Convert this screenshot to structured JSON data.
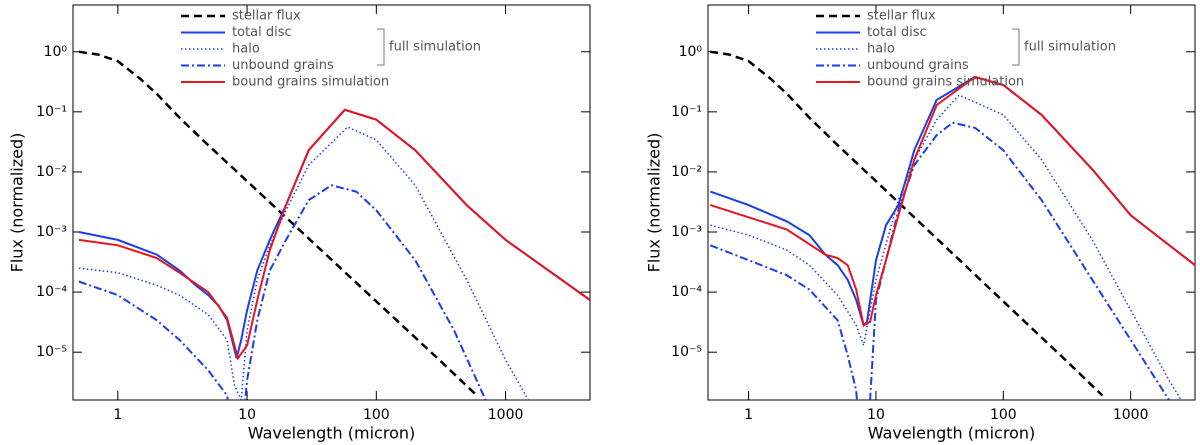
{
  "chart_data": [
    {
      "type": "line",
      "xlabel": "Wavelength (micron)",
      "ylabel": "Flux (normalized)",
      "xscale": "log",
      "yscale": "log",
      "xlim": [
        0.45,
        4500
      ],
      "ylim": [
        1.6e-06,
        6
      ],
      "xticks": [
        1,
        10,
        100,
        1000
      ],
      "yticks": [
        {
          "value": 1e-05,
          "label": "10⁻⁵"
        },
        {
          "value": 0.0001,
          "label": "10⁻⁴"
        },
        {
          "value": 0.001,
          "label": "10⁻³"
        },
        {
          "value": 0.01,
          "label": "10⁻²"
        },
        {
          "value": 0.1,
          "label": "10⁻¹"
        },
        {
          "value": 1,
          "label": "10⁰"
        }
      ],
      "annotation": "full simulation",
      "series": [
        {
          "name": "stellar flux",
          "color": "#000000",
          "style": "dashed",
          "x": [
            0.5,
            0.7,
            1,
            1.5,
            2,
            3,
            5,
            10,
            20,
            50,
            100,
            300,
            600
          ],
          "values": [
            1.0,
            0.9,
            0.7,
            0.35,
            0.2,
            0.08,
            0.028,
            0.007,
            0.00175,
            0.00028,
            7e-05,
            7.8e-06,
            1.9e-06
          ]
        },
        {
          "name": "total disc",
          "color": "#1a3ee8",
          "style": "solid",
          "x": [
            0.5,
            1,
            2,
            3,
            4,
            5,
            6,
            7,
            8.3,
            9,
            10,
            12,
            15,
            20,
            30,
            57,
            100,
            200,
            500,
            1000,
            4500
          ],
          "values": [
            0.001,
            0.00074,
            0.00042,
            0.00023,
            0.00013,
            8.9e-05,
            6e-05,
            3.4e-05,
            7.9e-06,
            1.6e-05,
            5e-05,
            0.00023,
            0.00074,
            0.0028,
            0.023,
            0.108,
            0.074,
            0.023,
            0.0028,
            0.00074,
            7.4e-05
          ]
        },
        {
          "name": "halo",
          "color": "#1a3ee8",
          "style": "dotted",
          "x": [
            0.5,
            1,
            2,
            3,
            5,
            7,
            8,
            9,
            10,
            12,
            15,
            20,
            30,
            60,
            100,
            200,
            500,
            1000,
            1500
          ],
          "values": [
            0.00025,
            0.00021,
            0.00013,
            8.9e-05,
            4.2e-05,
            1.6e-05,
            2.8e-06,
            1.6e-06,
            2.3e-05,
            0.00016,
            0.0006,
            0.0023,
            0.013,
            0.056,
            0.034,
            0.006,
            0.00016,
            7.4e-06,
            1.6e-06
          ]
        },
        {
          "name": "unbound grains",
          "color": "#1a3ee8",
          "style": "dashdot",
          "x": [
            0.5,
            1,
            2,
            3,
            5,
            7,
            8,
            9,
            10,
            12,
            15,
            20,
            30,
            45,
            70,
            100,
            200,
            400,
            700
          ],
          "values": [
            0.00015,
            8.9e-05,
            3.4e-05,
            1.6e-05,
            5e-06,
            1.9e-06,
            3.4e-07,
            3.4e-07,
            3.4e-06,
            3.4e-05,
            0.00023,
            0.00074,
            0.0034,
            0.006,
            0.0047,
            0.0023,
            0.00034,
            2.3e-05,
            1.6e-06
          ]
        },
        {
          "name": "bound grains simulation",
          "color": "#e8141e",
          "style": "solid",
          "x": [
            0.5,
            1,
            2,
            3,
            5,
            7,
            8.5,
            10,
            12,
            15,
            20,
            30,
            57,
            100,
            200,
            500,
            1000,
            4500
          ],
          "values": [
            0.00074,
            0.0006,
            0.00037,
            0.00021,
            0.0001,
            3.7e-05,
            7.9e-06,
            1.3e-05,
            7.4e-05,
            0.0005,
            0.0028,
            0.023,
            0.108,
            0.074,
            0.023,
            0.0028,
            0.00074,
            7.4e-05
          ]
        }
      ]
    },
    {
      "type": "line",
      "xlabel": "Wavelength (micron)",
      "ylabel": "Flux (normalized)",
      "xscale": "log",
      "yscale": "log",
      "xlim": [
        0.48,
        3200
      ],
      "ylim": [
        1.6e-06,
        6
      ],
      "xticks": [
        1,
        10,
        100,
        1000
      ],
      "yticks": [
        {
          "value": 1e-05,
          "label": "10⁻⁵"
        },
        {
          "value": 0.0001,
          "label": "10⁻⁴"
        },
        {
          "value": 0.001,
          "label": "10⁻³"
        },
        {
          "value": 0.01,
          "label": "10⁻²"
        },
        {
          "value": 0.1,
          "label": "10⁻¹"
        },
        {
          "value": 1,
          "label": "10⁰"
        }
      ],
      "annotation": "full simulation",
      "series": [
        {
          "name": "stellar flux",
          "color": "#000000",
          "style": "dashed",
          "x": [
            0.5,
            0.7,
            1,
            1.5,
            2,
            3,
            5,
            10,
            20,
            50,
            100,
            300,
            600
          ],
          "values": [
            1.0,
            0.9,
            0.7,
            0.35,
            0.2,
            0.08,
            0.028,
            0.007,
            0.00175,
            0.00028,
            7e-05,
            7.8e-06,
            1.9e-06
          ]
        },
        {
          "name": "total disc",
          "color": "#1a3ee8",
          "style": "solid",
          "x": [
            0.5,
            1,
            2,
            3,
            4,
            5,
            6,
            7,
            8,
            8.5,
            10,
            12,
            15,
            20,
            30,
            60,
            100,
            200,
            500,
            1000,
            3200
          ],
          "values": [
            0.0047,
            0.0028,
            0.0015,
            0.00089,
            0.00042,
            0.00028,
            0.00016,
            7.4e-05,
            2.8e-05,
            3.2e-05,
            0.00034,
            0.0013,
            0.0028,
            0.023,
            0.158,
            0.38,
            0.28,
            0.089,
            0.011,
            0.0019,
            0.00028
          ]
        },
        {
          "name": "halo",
          "color": "#1a3ee8",
          "style": "dotted",
          "x": [
            0.5,
            1,
            2,
            3,
            5,
            7,
            8,
            9,
            10,
            15,
            20,
            30,
            45,
            100,
            200,
            500,
            1000,
            2000,
            2500
          ],
          "values": [
            0.0013,
            0.00089,
            0.0005,
            0.00028,
            8.9e-05,
            2.8e-05,
            1.3e-05,
            5e-05,
            0.00016,
            0.0034,
            0.016,
            0.074,
            0.19,
            0.089,
            0.016,
            0.00074,
            5e-05,
            3.4e-06,
            1.6e-06
          ]
        },
        {
          "name": "unbound grains",
          "color": "#1a3ee8",
          "style": "dashdot",
          "x": [
            0.5,
            1,
            2,
            3,
            5,
            6,
            7,
            7.5,
            8.5,
            9,
            10,
            15,
            20,
            30,
            40,
            60,
            100,
            200,
            500,
            1000,
            2000
          ],
          "values": [
            0.0006,
            0.00034,
            0.00019,
            0.00011,
            3.4e-05,
            8.9e-06,
            2.3e-06,
            3.4e-07,
            3.4e-07,
            1.6e-06,
            7.4e-05,
            0.0023,
            0.013,
            0.041,
            0.066,
            0.054,
            0.023,
            0.0034,
            0.00016,
            1.6e-05,
            1.6e-06
          ]
        },
        {
          "name": "bound grains simulation",
          "color": "#e8141e",
          "style": "solid",
          "x": [
            0.5,
            2,
            4,
            5,
            6,
            7,
            8,
            9,
            10,
            12,
            15,
            20,
            30,
            60,
            100,
            200,
            500,
            1000,
            3200
          ],
          "values": [
            0.0028,
            0.0011,
            0.00042,
            0.00037,
            0.00028,
            0.00011,
            2.8e-05,
            3.2e-05,
            8.9e-05,
            0.00034,
            0.0019,
            0.016,
            0.13,
            0.38,
            0.28,
            0.089,
            0.011,
            0.0019,
            0.00028
          ]
        }
      ]
    }
  ]
}
